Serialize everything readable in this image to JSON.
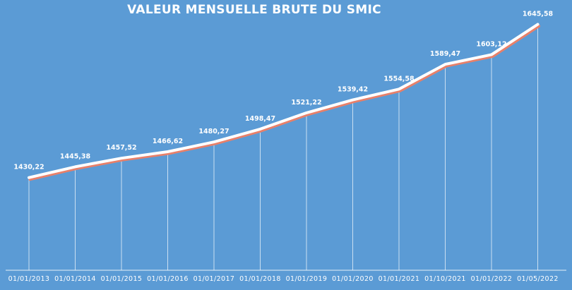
{
  "colors": {
    "background": "#5b9bd5",
    "line": "#ffffff",
    "line_shadow": "#e8806a",
    "drop_lines": "#ffffff",
    "text": "#ffffff"
  },
  "chart_data": {
    "type": "line",
    "title": "VALEUR MENSUELLE BRUTE DU SMIC",
    "xlabel": "",
    "ylabel": "",
    "categories": [
      "01/01/2013",
      "01/01/2014",
      "01/01/2015",
      "01/01/2016",
      "01/01/2017",
      "01/01/2018",
      "01/01/2019",
      "01/01/2020",
      "01/01/2021",
      "01/10/2021",
      "01/01/2022",
      "01/05/2022"
    ],
    "values": [
      1430.22,
      1445.38,
      1457.52,
      1466.62,
      1480.27,
      1498.47,
      1521.22,
      1539.42,
      1554.58,
      1589.47,
      1603.12,
      1645.58
    ],
    "value_labels": [
      "1430,22",
      "1445,38",
      "1457,52",
      "1466,62",
      "1480,27",
      "1498,47",
      "1521,22",
      "1539,42",
      "1554,58",
      "1589,47",
      "1603,12",
      "1645,58"
    ],
    "ylim": [
      1300,
      1660
    ],
    "grid": false,
    "drop_lines": true,
    "legend": "none"
  }
}
